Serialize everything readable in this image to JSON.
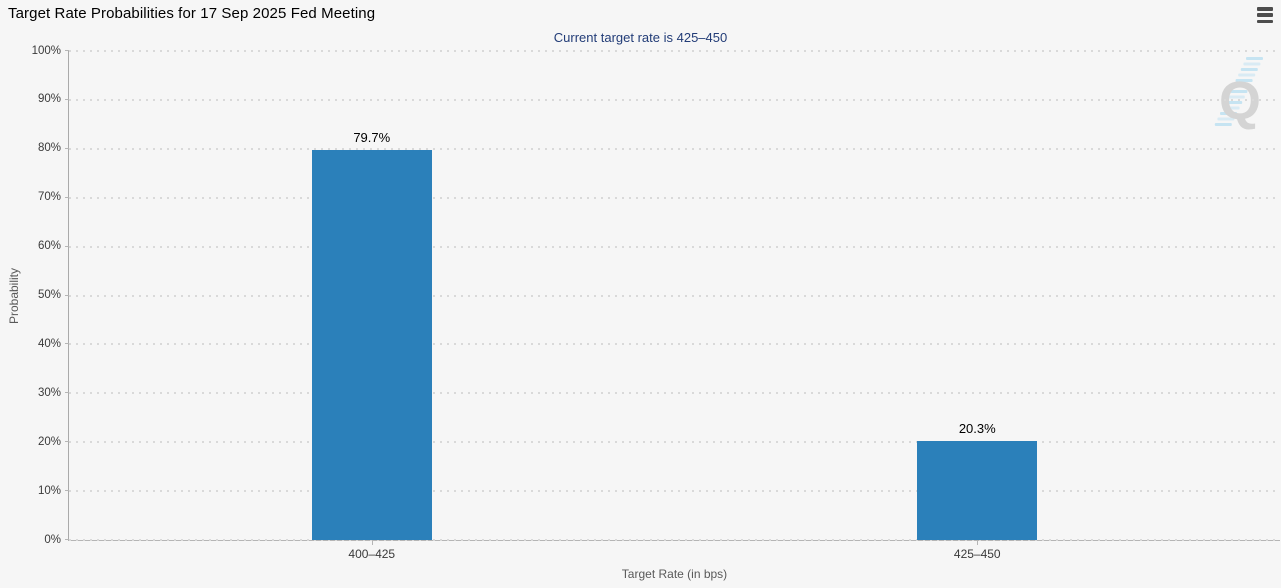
{
  "header": {
    "menu_icon": "hamburger-menu-icon"
  },
  "chart_data": {
    "type": "bar",
    "title": "Target Rate Probabilities for 17 Sep 2025 Fed Meeting",
    "subtitle": "Current target rate is 425–450",
    "categories": [
      "400–425",
      "425–450"
    ],
    "values": [
      79.7,
      20.3
    ],
    "value_labels": [
      "79.7%",
      "20.3%"
    ],
    "xlabel": "Target Rate (in bps)",
    "ylabel": "Probability",
    "ylim": [
      0,
      100
    ],
    "ytick_step": 10,
    "ytick_labels": [
      "0%",
      "10%",
      "20%",
      "30%",
      "40%",
      "50%",
      "60%",
      "70%",
      "80%",
      "90%",
      "100%"
    ],
    "grid": "dotted-horizontal",
    "legend": "none",
    "bar_color": "#2b80ba",
    "subtitle_color": "#223c77"
  },
  "watermark": {
    "letter": "Q"
  }
}
